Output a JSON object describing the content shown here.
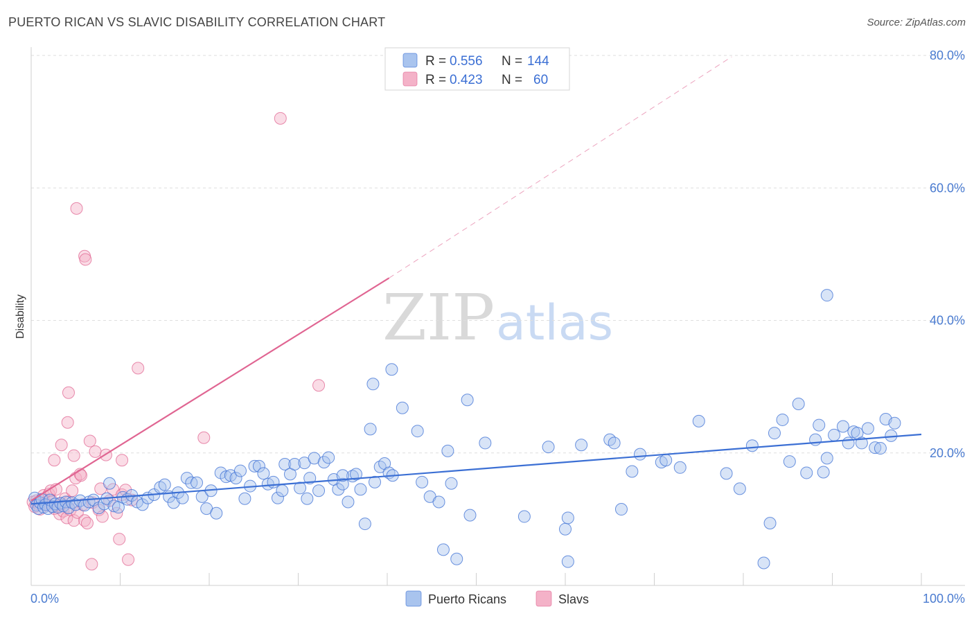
{
  "title": "PUERTO RICAN VS SLAVIC DISABILITY CORRELATION CHART",
  "source": "Source: ZipAtlas.com",
  "watermark": {
    "zip": "ZIP",
    "atlas": "atlas"
  },
  "colors": {
    "blue": "#3b6fd4",
    "blue_fill": "#a9c4ee",
    "pink": "#e06592",
    "pink_fill": "#f4b2c8",
    "grid": "#dedede",
    "tick_text": "#4a7bd0"
  },
  "legend": {
    "rows": [
      {
        "r_label": "R =",
        "r_value": "0.556",
        "n_label": "N =",
        "n_value": "144"
      },
      {
        "r_label": "R =",
        "r_value": "0.423",
        "n_label": "N =",
        "n_value": "60"
      }
    ]
  },
  "bottom_legend": [
    "Puerto Ricans",
    "Slavs"
  ],
  "chart_data": {
    "type": "scatter",
    "title": "PUERTO RICAN VS SLAVIC DISABILITY CORRELATION CHART",
    "xlabel": "",
    "ylabel": "Disability",
    "xlim": [
      0,
      100
    ],
    "ylim": [
      0,
      80
    ],
    "x_tick_labels": [
      "0.0%",
      "100.0%"
    ],
    "y_ticks": [
      20,
      40,
      60,
      80
    ],
    "y_tick_labels": [
      "20.0%",
      "40.0%",
      "60.0%",
      "80.0%"
    ],
    "grid": true,
    "legend_position": "top-center",
    "series": [
      {
        "name": "Puerto Ricans",
        "r": 0.556,
        "n": 144,
        "trend": {
          "x": [
            0,
            100
          ],
          "y": [
            12.3,
            22.8
          ]
        },
        "points": [
          [
            0.4,
            13.2
          ],
          [
            0.6,
            12.1
          ],
          [
            0.8,
            11.6
          ],
          [
            1.0,
            12.5
          ],
          [
            1.2,
            13.0
          ],
          [
            1.4,
            11.8
          ],
          [
            1.6,
            12.2
          ],
          [
            1.9,
            11.6
          ],
          [
            2.1,
            12.9
          ],
          [
            2.4,
            11.9
          ],
          [
            2.7,
            12.3
          ],
          [
            3.0,
            11.8
          ],
          [
            3.3,
            12.4
          ],
          [
            3.6,
            12.0
          ],
          [
            3.9,
            12.6
          ],
          [
            4.2,
            11.7
          ],
          [
            4.6,
            12.5
          ],
          [
            5.0,
            12.2
          ],
          [
            5.5,
            12.8
          ],
          [
            6.0,
            12.1
          ],
          [
            6.5,
            12.6
          ],
          [
            7.0,
            12.9
          ],
          [
            7.6,
            11.7
          ],
          [
            8.2,
            12.3
          ],
          [
            8.5,
            13.1
          ],
          [
            8.8,
            15.4
          ],
          [
            9.3,
            12.0
          ],
          [
            9.8,
            11.8
          ],
          [
            10.3,
            13.3
          ],
          [
            10.8,
            13.0
          ],
          [
            11.3,
            13.6
          ],
          [
            11.9,
            12.6
          ],
          [
            12.5,
            12.2
          ],
          [
            13.1,
            13.2
          ],
          [
            13.8,
            13.7
          ],
          [
            14.5,
            14.8
          ],
          [
            15.0,
            15.2
          ],
          [
            15.5,
            13.4
          ],
          [
            16.0,
            12.5
          ],
          [
            16.5,
            14.0
          ],
          [
            17.0,
            13.2
          ],
          [
            17.5,
            16.2
          ],
          [
            18.0,
            15.5
          ],
          [
            18.6,
            15.5
          ],
          [
            19.2,
            13.4
          ],
          [
            19.7,
            11.6
          ],
          [
            20.2,
            14.3
          ],
          [
            20.8,
            10.9
          ],
          [
            21.3,
            17.0
          ],
          [
            21.9,
            16.4
          ],
          [
            22.4,
            16.6
          ],
          [
            23.0,
            16.2
          ],
          [
            23.5,
            17.3
          ],
          [
            24.0,
            13.1
          ],
          [
            24.6,
            15.0
          ],
          [
            25.1,
            18.0
          ],
          [
            25.6,
            18.0
          ],
          [
            26.1,
            16.9
          ],
          [
            26.6,
            15.3
          ],
          [
            27.2,
            15.6
          ],
          [
            27.7,
            13.2
          ],
          [
            28.2,
            14.3
          ],
          [
            28.5,
            18.3
          ],
          [
            29.1,
            16.8
          ],
          [
            29.6,
            18.3
          ],
          [
            30.2,
            14.7
          ],
          [
            30.7,
            18.5
          ],
          [
            31.3,
            16.2
          ],
          [
            31.8,
            19.2
          ],
          [
            32.3,
            14.3
          ],
          [
            32.9,
            18.6
          ],
          [
            33.4,
            19.3
          ],
          [
            34.0,
            16.0
          ],
          [
            34.5,
            14.5
          ],
          [
            35.0,
            15.3
          ],
          [
            35.6,
            12.6
          ],
          [
            36.1,
            16.5
          ],
          [
            36.5,
            16.8
          ],
          [
            37.0,
            14.5
          ],
          [
            37.5,
            9.3
          ],
          [
            38.1,
            23.6
          ],
          [
            38.6,
            15.6
          ],
          [
            39.2,
            17.9
          ],
          [
            39.7,
            18.4
          ],
          [
            40.2,
            17.0
          ],
          [
            40.6,
            16.6
          ],
          [
            41.7,
            26.8
          ],
          [
            43.4,
            23.3
          ],
          [
            43.9,
            15.6
          ],
          [
            44.8,
            13.4
          ],
          [
            45.8,
            12.6
          ],
          [
            46.3,
            5.4
          ],
          [
            46.8,
            20.3
          ],
          [
            47.2,
            15.4
          ],
          [
            47.8,
            4.0
          ],
          [
            49.0,
            28.0
          ],
          [
            49.3,
            10.6
          ],
          [
            51.0,
            21.5
          ],
          [
            55.4,
            10.4
          ],
          [
            58.1,
            20.9
          ],
          [
            60.0,
            8.5
          ],
          [
            60.3,
            3.6
          ],
          [
            61.8,
            21.2
          ],
          [
            65.0,
            22.0
          ],
          [
            66.3,
            11.5
          ],
          [
            67.5,
            17.2
          ],
          [
            68.4,
            19.8
          ],
          [
            70.8,
            18.6
          ],
          [
            71.3,
            18.9
          ],
          [
            72.9,
            17.8
          ],
          [
            75.0,
            24.8
          ],
          [
            78.1,
            16.9
          ],
          [
            79.6,
            14.6
          ],
          [
            81.0,
            21.1
          ],
          [
            82.3,
            3.4
          ],
          [
            83.0,
            9.4
          ],
          [
            83.5,
            23.0
          ],
          [
            84.4,
            25.0
          ],
          [
            85.2,
            18.7
          ],
          [
            86.2,
            27.4
          ],
          [
            87.1,
            17.0
          ],
          [
            88.1,
            22.0
          ],
          [
            88.5,
            24.2
          ],
          [
            89.0,
            17.1
          ],
          [
            89.4,
            19.2
          ],
          [
            90.2,
            22.7
          ],
          [
            91.2,
            24.0
          ],
          [
            91.8,
            21.5
          ],
          [
            92.4,
            23.2
          ],
          [
            92.8,
            23.0
          ],
          [
            93.3,
            21.5
          ],
          [
            94.0,
            23.7
          ],
          [
            94.8,
            20.8
          ],
          [
            95.4,
            20.7
          ],
          [
            96.0,
            25.1
          ],
          [
            96.6,
            22.6
          ],
          [
            97.0,
            24.5
          ],
          [
            60.3,
            10.2
          ],
          [
            65.5,
            21.5
          ],
          [
            35.0,
            16.6
          ],
          [
            31.0,
            13.1
          ],
          [
            38.4,
            30.4
          ],
          [
            40.5,
            32.6
          ],
          [
            89.4,
            43.8
          ]
        ]
      },
      {
        "name": "Slavs",
        "r": 0.423,
        "n": 60,
        "trend": {
          "x": [
            0,
            40.2
          ],
          "y": [
            12.8,
            46.4
          ]
        },
        "trend_extension": {
          "x": [
            40.2,
            78.7
          ],
          "y": [
            46.4,
            79.8
          ]
        },
        "points": [
          [
            0.2,
            12.6
          ],
          [
            0.4,
            11.9
          ],
          [
            0.6,
            12.8
          ],
          [
            0.8,
            12.3
          ],
          [
            1.0,
            11.5
          ],
          [
            1.2,
            12.9
          ],
          [
            1.4,
            13.6
          ],
          [
            1.6,
            12.5
          ],
          [
            1.8,
            12.1
          ],
          [
            2.0,
            13.8
          ],
          [
            2.2,
            14.3
          ],
          [
            2.4,
            12.7
          ],
          [
            2.6,
            11.6
          ],
          [
            2.8,
            14.5
          ],
          [
            3.0,
            12.0
          ],
          [
            3.2,
            10.8
          ],
          [
            3.4,
            12.3
          ],
          [
            3.6,
            11.2
          ],
          [
            3.8,
            13.1
          ],
          [
            4.0,
            10.2
          ],
          [
            4.2,
            12.6
          ],
          [
            4.4,
            11.4
          ],
          [
            4.6,
            14.3
          ],
          [
            4.8,
            9.8
          ],
          [
            5.0,
            16.2
          ],
          [
            5.2,
            11.0
          ],
          [
            5.5,
            16.8
          ],
          [
            5.8,
            12.2
          ],
          [
            6.0,
            9.8
          ],
          [
            6.3,
            9.4
          ],
          [
            6.6,
            21.8
          ],
          [
            6.9,
            12.5
          ],
          [
            7.2,
            20.2
          ],
          [
            7.6,
            11.4
          ],
          [
            8.0,
            10.4
          ],
          [
            8.4,
            19.7
          ],
          [
            8.8,
            12.8
          ],
          [
            9.2,
            14.5
          ],
          [
            9.6,
            10.9
          ],
          [
            9.9,
            7.0
          ],
          [
            10.2,
            13.7
          ],
          [
            10.6,
            14.4
          ],
          [
            10.9,
            3.9
          ],
          [
            11.3,
            12.9
          ],
          [
            12.0,
            32.8
          ],
          [
            19.4,
            22.3
          ],
          [
            28.0,
            70.5
          ],
          [
            32.3,
            30.2
          ],
          [
            5.1,
            56.9
          ],
          [
            6.0,
            49.7
          ],
          [
            6.1,
            49.2
          ],
          [
            4.2,
            29.1
          ],
          [
            4.1,
            24.6
          ],
          [
            3.4,
            21.2
          ],
          [
            2.6,
            18.9
          ],
          [
            4.8,
            19.6
          ],
          [
            5.6,
            16.6
          ],
          [
            7.8,
            14.6
          ],
          [
            6.8,
            3.2
          ],
          [
            10.2,
            18.9
          ]
        ]
      }
    ]
  }
}
